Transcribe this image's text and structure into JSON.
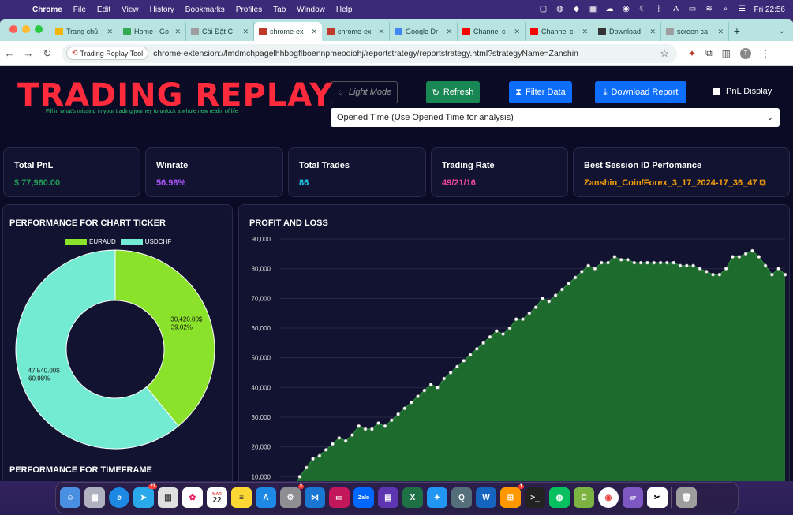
{
  "menubar": {
    "app": "Chrome",
    "items": [
      "File",
      "Edit",
      "View",
      "History",
      "Bookmarks",
      "Profiles",
      "Tab",
      "Window",
      "Help"
    ],
    "clock": "Fri 22:56"
  },
  "tabs": [
    {
      "label": "Trang chủ",
      "color": "#f4b400"
    },
    {
      "label": "Home - Go",
      "color": "#34a853"
    },
    {
      "label": "Cài Đặt C",
      "color": "#9e9e9e"
    },
    {
      "label": "chrome-ex",
      "color": "#c0392b",
      "active": true
    },
    {
      "label": "chrome-ex",
      "color": "#c0392b"
    },
    {
      "label": "Google Dr",
      "color": "#4285f4"
    },
    {
      "label": "Channel c",
      "color": "#ff0000"
    },
    {
      "label": "Channel c",
      "color": "#ff0000"
    },
    {
      "label": "Download",
      "color": "#333333"
    },
    {
      "label": "screen ca",
      "color": "#9e9e9e"
    }
  ],
  "toolbar": {
    "chip_label": "Trading Replay Tool",
    "url": "chrome-extension://lmdmchpagelhhbogflboennpmeooiohj/reportstrategy/reportstrategy.html?strategyName=Zanshin",
    "avatar": "T"
  },
  "header": {
    "brand": "TRADING REPLAY",
    "tagline": "Fill in what's missing in your trading journey to unlock a whole new realm of life",
    "light_mode": "Light Mode",
    "refresh": "Refresh",
    "filter": "Filter Data",
    "download": "Download Report",
    "pnl_display": "PnL Display",
    "select_value": "Opened Time (Use Opened Time for analysis)"
  },
  "cards": [
    {
      "title": "Total PnL",
      "value": "$ 77,960.00",
      "color": "#1f9d55"
    },
    {
      "title": "Winrate",
      "value": "56.98%",
      "color": "#a855f7"
    },
    {
      "title": "Total Trades",
      "value": "86",
      "color": "#22d3ee"
    },
    {
      "title": "Trading Rate",
      "value": "49/21/16",
      "color": "#ec4899"
    },
    {
      "title": "Best Session ID Perfomance",
      "value": "Zanshin_Coin/Forex_3_17_2024-17_36_47",
      "color": "#f59e0b"
    }
  ],
  "ticker_panel": {
    "title": "PERFORMANCE FOR CHART TICKER",
    "subtitle": "PERFORMANCE FOR TIMEFRAME"
  },
  "pnl_panel": {
    "title": "PROFIT AND LOSS"
  },
  "chart_data": [
    {
      "type": "pie",
      "donut": true,
      "labels": [
        "EURAUD",
        "USDCHF"
      ],
      "values": [
        30420,
        47540
      ],
      "value_labels": [
        "30,420.00$",
        "47,540.00$"
      ],
      "percent_labels": [
        "39.02%",
        "60.98%"
      ],
      "colors": [
        "#8be22a",
        "#73ead2"
      ],
      "legend": "top"
    },
    {
      "type": "area",
      "ylim": [
        0,
        90000
      ],
      "yticks": [
        10000,
        20000,
        30000,
        40000,
        50000,
        60000,
        70000,
        80000,
        90000
      ],
      "ytick_labels": [
        "10,000",
        "20,000",
        "30,000",
        "40,000",
        "50,000",
        "60,000",
        "70,000",
        "80,000",
        "90,000"
      ],
      "color": "#1e6b2e",
      "line_color": "#2f8f3f",
      "values": [
        4000,
        4000,
        6000,
        10000,
        13000,
        16000,
        17000,
        19000,
        21000,
        23000,
        22000,
        24000,
        27000,
        26000,
        26000,
        28000,
        27000,
        29000,
        31000,
        33000,
        35000,
        37000,
        39000,
        41000,
        40000,
        43000,
        45000,
        47000,
        49000,
        51000,
        53000,
        55000,
        57000,
        59000,
        58000,
        60000,
        63000,
        63000,
        65000,
        67000,
        70000,
        69000,
        71000,
        73000,
        75000,
        77000,
        79000,
        81000,
        80000,
        82000,
        82000,
        84000,
        83000,
        83000,
        82000,
        82000,
        82000,
        82000,
        82000,
        82000,
        82000,
        81000,
        81000,
        81000,
        80000,
        79000,
        78000,
        78000,
        80000,
        84000,
        84000,
        85000,
        86000,
        84000,
        81000,
        78000,
        80000,
        78000
      ]
    }
  ],
  "dock": {
    "badges": {
      "telegram": "27",
      "settings": "3",
      "misc": "1"
    },
    "calendar_month": "MAR",
    "calendar_day": "22",
    "zalo": "Zalo"
  }
}
